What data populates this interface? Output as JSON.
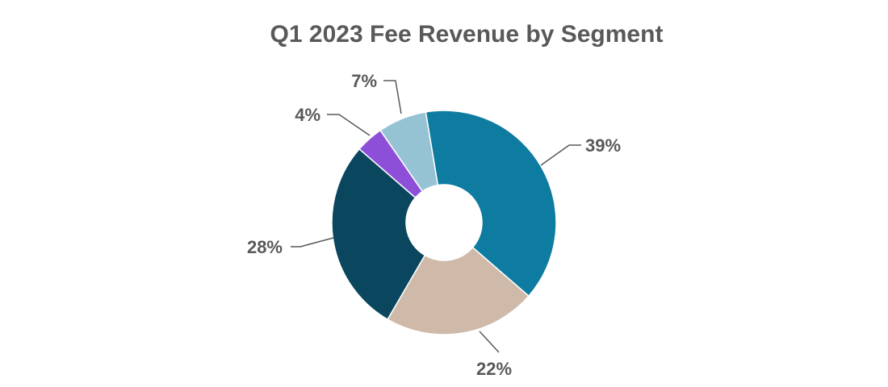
{
  "chart_data": {
    "type": "pie",
    "donut": true,
    "title": "Q1 2023 Fee Revenue by Segment",
    "values": [
      39,
      22,
      28,
      4,
      7
    ],
    "labels": [
      "39%",
      "22%",
      "28%",
      "4%",
      "7%"
    ],
    "colors": [
      "#0E7BA1",
      "#CFB9A8",
      "#0A465E",
      "#8E4FD8",
      "#96C3D4"
    ],
    "legend": "none"
  }
}
